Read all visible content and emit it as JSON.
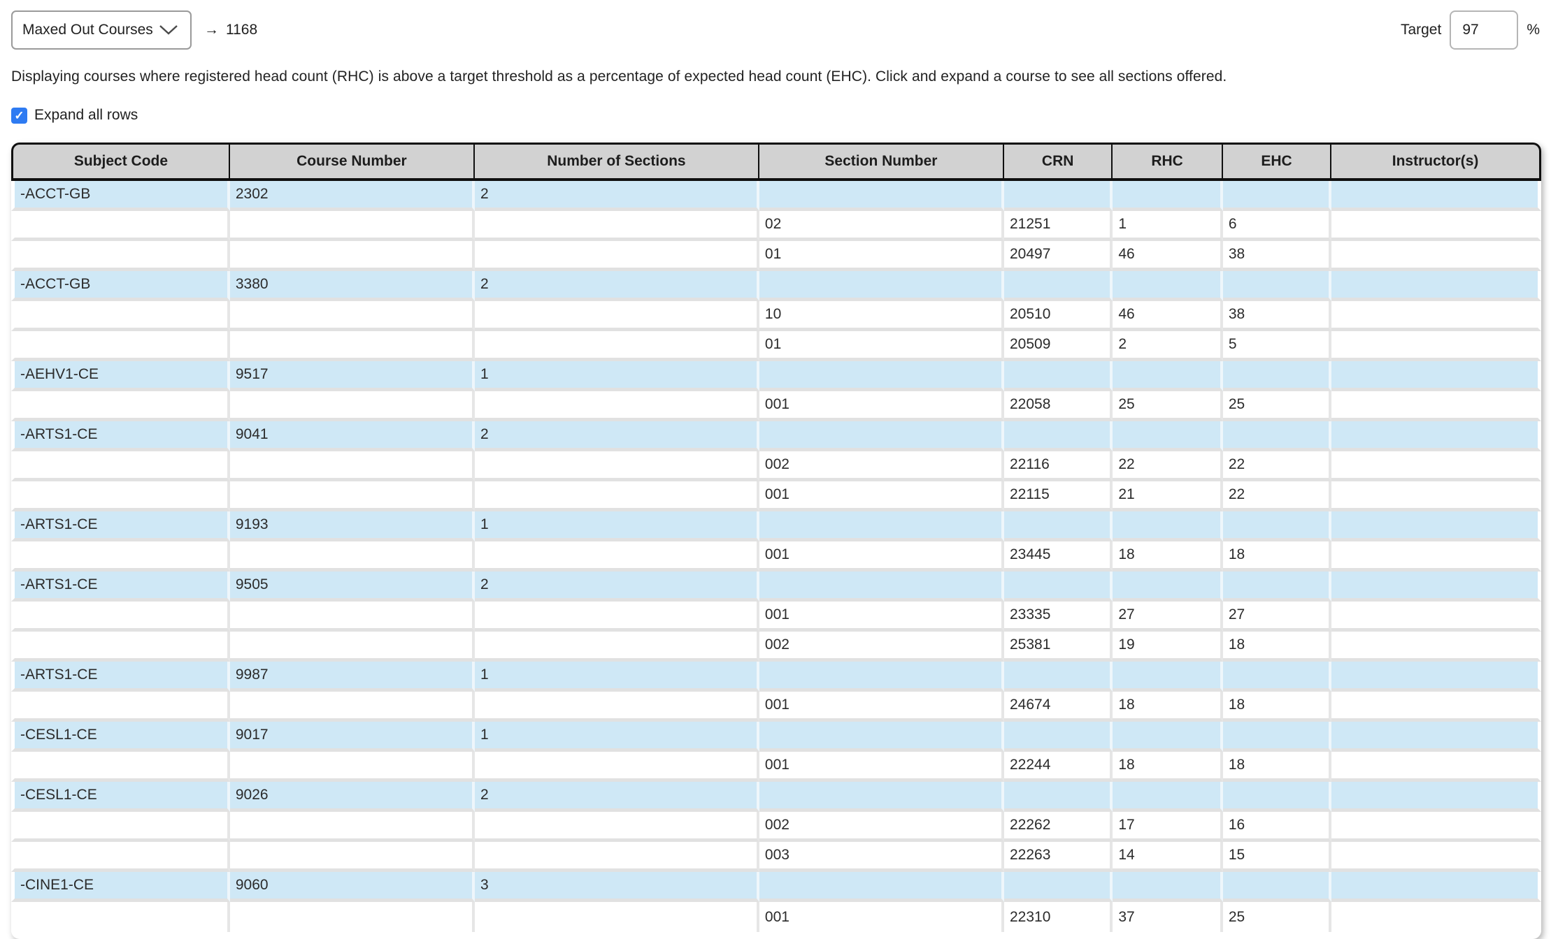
{
  "header": {
    "report_select_value": "Maxed Out Courses",
    "arrow": "→",
    "count": "1168",
    "target_label": "Target",
    "target_value": "97",
    "percent_sign": "%"
  },
  "description": "Displaying courses where registered head count (RHC) is above a target threshold as a percentage of expected head count (EHC). Click and expand a course to see all sections offered.",
  "expand_checkbox": {
    "label": "Expand all rows",
    "checked": true,
    "check_glyph": "✓"
  },
  "colors": {
    "course_row_blue": "#cfe8f6",
    "header_gray": "#d2d2d2",
    "checkbox_blue": "#2e7bf2",
    "row_gap_gray": "#e1e1e1"
  },
  "table": {
    "columns": [
      "Subject Code",
      "Course Number",
      "Number of Sections",
      "Section Number",
      "CRN",
      "RHC",
      "EHC",
      "Instructor(s)"
    ],
    "courses": [
      {
        "subject_code": "-ACCT-GB",
        "course_number": "2302",
        "num_sections": "2",
        "sections": [
          {
            "section": "02",
            "crn": "21251",
            "rhc": "1",
            "ehc": "6",
            "instructors": ""
          },
          {
            "section": "01",
            "crn": "20497",
            "rhc": "46",
            "ehc": "38",
            "instructors": ""
          }
        ]
      },
      {
        "subject_code": "-ACCT-GB",
        "course_number": "3380",
        "num_sections": "2",
        "sections": [
          {
            "section": "10",
            "crn": "20510",
            "rhc": "46",
            "ehc": "38",
            "instructors": ""
          },
          {
            "section": "01",
            "crn": "20509",
            "rhc": "2",
            "ehc": "5",
            "instructors": ""
          }
        ]
      },
      {
        "subject_code": "-AEHV1-CE",
        "course_number": "9517",
        "num_sections": "1",
        "sections": [
          {
            "section": "001",
            "crn": "22058",
            "rhc": "25",
            "ehc": "25",
            "instructors": ""
          }
        ]
      },
      {
        "subject_code": "-ARTS1-CE",
        "course_number": "9041",
        "num_sections": "2",
        "sections": [
          {
            "section": "002",
            "crn": "22116",
            "rhc": "22",
            "ehc": "22",
            "instructors": ""
          },
          {
            "section": "001",
            "crn": "22115",
            "rhc": "21",
            "ehc": "22",
            "instructors": ""
          }
        ]
      },
      {
        "subject_code": "-ARTS1-CE",
        "course_number": "9193",
        "num_sections": "1",
        "sections": [
          {
            "section": "001",
            "crn": "23445",
            "rhc": "18",
            "ehc": "18",
            "instructors": ""
          }
        ]
      },
      {
        "subject_code": "-ARTS1-CE",
        "course_number": "9505",
        "num_sections": "2",
        "sections": [
          {
            "section": "001",
            "crn": "23335",
            "rhc": "27",
            "ehc": "27",
            "instructors": ""
          },
          {
            "section": "002",
            "crn": "25381",
            "rhc": "19",
            "ehc": "18",
            "instructors": ""
          }
        ]
      },
      {
        "subject_code": "-ARTS1-CE",
        "course_number": "9987",
        "num_sections": "1",
        "sections": [
          {
            "section": "001",
            "crn": "24674",
            "rhc": "18",
            "ehc": "18",
            "instructors": ""
          }
        ]
      },
      {
        "subject_code": "-CESL1-CE",
        "course_number": "9017",
        "num_sections": "1",
        "sections": [
          {
            "section": "001",
            "crn": "22244",
            "rhc": "18",
            "ehc": "18",
            "instructors": ""
          }
        ]
      },
      {
        "subject_code": "-CESL1-CE",
        "course_number": "9026",
        "num_sections": "2",
        "sections": [
          {
            "section": "002",
            "crn": "22262",
            "rhc": "17",
            "ehc": "16",
            "instructors": ""
          },
          {
            "section": "003",
            "crn": "22263",
            "rhc": "14",
            "ehc": "15",
            "instructors": ""
          }
        ]
      },
      {
        "subject_code": "-CINE1-CE",
        "course_number": "9060",
        "num_sections": "3",
        "sections": [
          {
            "section": "001",
            "crn": "22310",
            "rhc": "37",
            "ehc": "25",
            "instructors": ""
          }
        ]
      }
    ]
  }
}
